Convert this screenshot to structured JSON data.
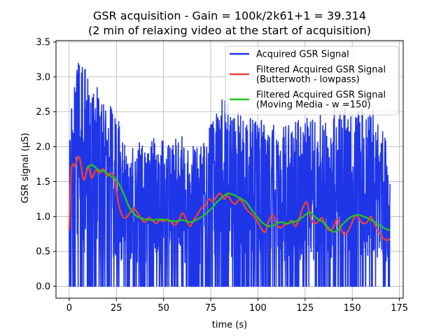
{
  "chart_data": {
    "type": "line",
    "title": "GSR acquisition - Gain = 100k/2k61+1 = 39.314",
    "subtitle": "(2 min of relaxing video at the start of acquisition)",
    "xlabel": "time (s)",
    "ylabel": "GSR signal (μS)",
    "xlim": [
      -7,
      177
    ],
    "ylim": [
      -0.17,
      3.52
    ],
    "xticks": [
      0,
      25,
      50,
      75,
      100,
      125,
      150,
      175
    ],
    "yticks": [
      0.0,
      0.5,
      1.0,
      1.5,
      2.0,
      2.5,
      3.0,
      3.5
    ],
    "xtick_labels": [
      "0",
      "25",
      "50",
      "75",
      "100",
      "125",
      "150",
      "175"
    ],
    "ytick_labels": [
      "0.0",
      "0.5",
      "1.0",
      "1.5",
      "2.0",
      "2.5",
      "3.0",
      "3.5"
    ],
    "grid": true,
    "legend_position": "top-right",
    "series": [
      {
        "name": "Acquired GSR Signal",
        "color": "#1f35e8",
        "style": "noisy",
        "x_range": [
          0,
          170
        ],
        "samples": 1400,
        "envelope": {
          "x": [
            0,
            5,
            10,
            20,
            25,
            30,
            40,
            50,
            60,
            70,
            80,
            85,
            90,
            100,
            110,
            120,
            130,
            140,
            150,
            160,
            170
          ],
          "y": [
            2.3,
            3.35,
            3.1,
            2.6,
            2.55,
            2.1,
            2.1,
            2.15,
            2.2,
            2.0,
            2.65,
            2.75,
            2.55,
            2.4,
            2.3,
            2.4,
            2.45,
            2.55,
            2.65,
            2.6,
            2.1
          ]
        }
      },
      {
        "name": "Filtered Acquired GSR Signal\n(Butterwoth - lowpass)",
        "color": "#e8403a",
        "x": [
          0,
          1,
          2,
          3,
          4,
          5,
          6,
          7,
          8,
          9,
          10,
          11,
          12,
          14,
          16,
          18,
          20,
          22,
          24,
          26,
          28,
          30,
          32,
          34,
          36,
          38,
          40,
          42,
          44,
          46,
          48,
          50,
          52,
          54,
          56,
          58,
          60,
          62,
          64,
          66,
          68,
          70,
          72,
          74,
          76,
          78,
          80,
          82,
          84,
          86,
          88,
          90,
          92,
          94,
          96,
          98,
          100,
          102,
          104,
          106,
          108,
          110,
          112,
          114,
          116,
          118,
          120,
          122,
          124,
          126,
          128,
          130,
          132,
          134,
          136,
          138,
          140,
          142,
          144,
          146,
          148,
          150,
          152,
          154,
          156,
          158,
          160,
          162,
          164,
          166,
          168,
          170
        ],
        "y": [
          0.8,
          1.6,
          1.75,
          1.72,
          1.8,
          1.86,
          1.78,
          1.6,
          1.52,
          1.62,
          1.72,
          1.65,
          1.55,
          1.66,
          1.62,
          1.68,
          1.58,
          1.62,
          1.55,
          1.2,
          1.02,
          0.98,
          1.05,
          1.12,
          1.06,
          0.97,
          0.92,
          0.98,
          0.95,
          0.9,
          0.95,
          0.93,
          0.96,
          0.92,
          0.88,
          0.94,
          1.05,
          0.96,
          0.86,
          0.95,
          1.03,
          1.12,
          1.15,
          1.25,
          1.22,
          1.28,
          1.33,
          1.25,
          1.3,
          1.22,
          1.18,
          1.24,
          1.2,
          1.1,
          1.05,
          1.0,
          0.92,
          0.82,
          0.78,
          0.95,
          1.02,
          0.88,
          0.84,
          0.88,
          0.9,
          0.94,
          0.86,
          0.98,
          1.14,
          1.2,
          0.98,
          0.9,
          0.93,
          0.98,
          0.86,
          0.8,
          0.84,
          0.96,
          0.82,
          0.74,
          0.8,
          0.92,
          1.02,
          0.95,
          0.9,
          0.92,
          1.0,
          0.88,
          0.78,
          0.7,
          0.66,
          0.68
        ]
      },
      {
        "name": "Filtered Acquired GSR Signal\n(Moving Media - w =150)",
        "color": "#22c41f",
        "x": [
          9,
          10,
          12,
          14,
          16,
          18,
          20,
          22,
          24,
          26,
          28,
          30,
          32,
          34,
          36,
          38,
          40,
          44,
          48,
          52,
          56,
          60,
          64,
          68,
          72,
          74,
          76,
          78,
          80,
          82,
          84,
          86,
          88,
          90,
          92,
          94,
          96,
          98,
          100,
          102,
          104,
          106,
          108,
          110,
          112,
          114,
          116,
          118,
          120,
          122,
          124,
          126,
          128,
          130,
          132,
          134,
          136,
          138,
          140,
          142,
          144,
          146,
          148,
          150,
          152,
          154,
          156,
          158,
          160,
          162,
          164,
          166,
          168,
          170
        ],
        "y": [
          1.68,
          1.71,
          1.74,
          1.7,
          1.66,
          1.65,
          1.62,
          1.58,
          1.55,
          1.48,
          1.38,
          1.25,
          1.12,
          1.05,
          1.0,
          0.98,
          0.96,
          0.95,
          0.96,
          0.95,
          0.93,
          0.95,
          0.92,
          0.96,
          1.03,
          1.08,
          1.13,
          1.2,
          1.25,
          1.3,
          1.33,
          1.32,
          1.3,
          1.27,
          1.24,
          1.2,
          1.12,
          1.05,
          0.98,
          0.92,
          0.88,
          0.86,
          0.87,
          0.9,
          0.92,
          0.91,
          0.9,
          0.92,
          0.93,
          0.96,
          1.0,
          1.04,
          1.06,
          1.0,
          0.96,
          0.93,
          0.88,
          0.82,
          0.78,
          0.8,
          0.86,
          0.92,
          0.97,
          1.0,
          1.02,
          1.02,
          1.0,
          0.98,
          0.95,
          0.92,
          0.88,
          0.85,
          0.82,
          0.8
        ]
      }
    ]
  }
}
